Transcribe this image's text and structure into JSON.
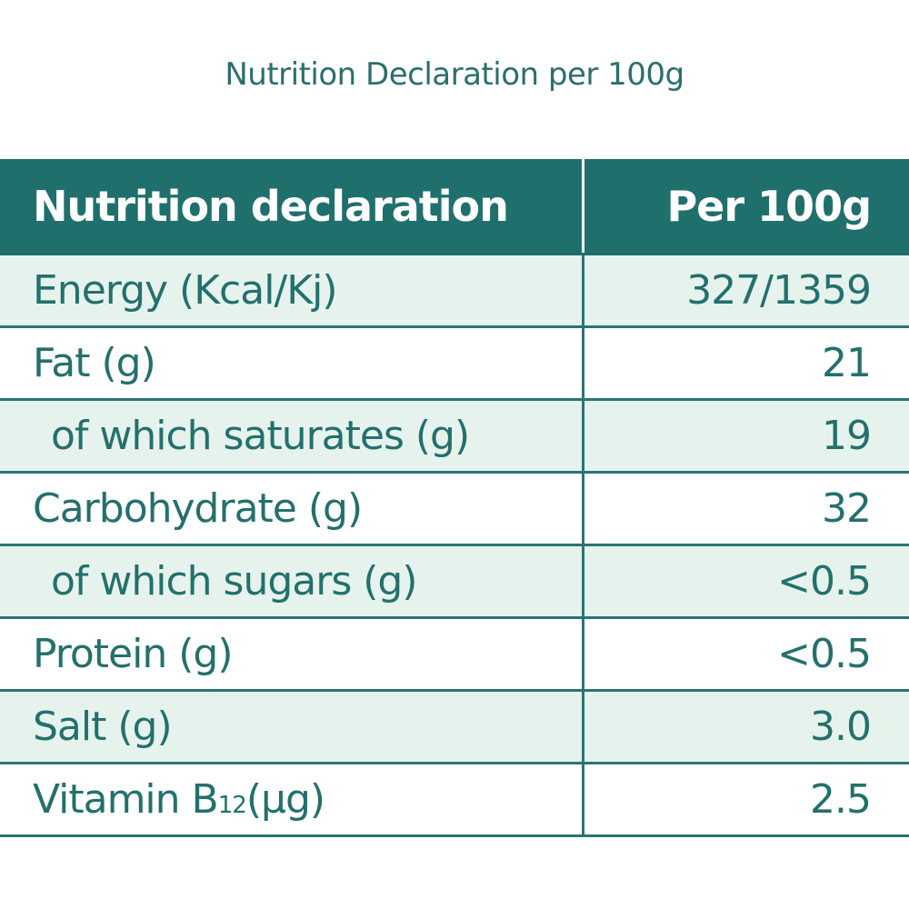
{
  "caption": "Nutrition Declaration per 100g",
  "colors": {
    "header_bg": "#1f706d",
    "shaded_row_bg": "#e6f3ec",
    "text": "#23706d",
    "rule": "#2b7472"
  },
  "table": {
    "header": {
      "name": "Nutrition declaration",
      "value": "Per 100g"
    },
    "rows": [
      {
        "name": "Energy (Kcal/Kj)",
        "value": "327/1359"
      },
      {
        "name": "Fat (g)",
        "value": "21"
      },
      {
        "name": "of which saturates (g)",
        "value": "19"
      },
      {
        "name": "Carbohydrate (g)",
        "value": "32"
      },
      {
        "name": "of which sugars (g)",
        "value": "<0.5"
      },
      {
        "name": "Protein (g)",
        "value": "<0.5"
      },
      {
        "name": "Salt (g)",
        "value": "3.0"
      },
      {
        "name_main": "Vitamin B",
        "name_sub": "12",
        "name_unit": " (µg)",
        "value": "2.5"
      }
    ]
  }
}
